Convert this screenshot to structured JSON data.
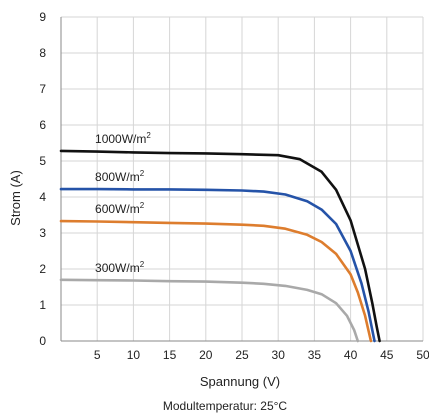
{
  "chart_data": {
    "type": "line",
    "xlabel": "Spannung (V)",
    "ylabel": "Strom (A)",
    "note": "Modultemperatur: 25°C",
    "xlim": [
      0,
      50
    ],
    "ylim": [
      0,
      9
    ],
    "xticks": [
      "5",
      "10",
      "15",
      "20",
      "25",
      "30",
      "35",
      "40",
      "45",
      "50"
    ],
    "yticks": [
      "0",
      "1",
      "2",
      "3",
      "4",
      "5",
      "6",
      "7",
      "8",
      "9"
    ],
    "grid": true,
    "series": [
      {
        "name": "1000W/m2",
        "label": "1000W/m",
        "label_sup": "2",
        "color": "#111111",
        "x": [
          0,
          5,
          10,
          15,
          20,
          25,
          30,
          33,
          36,
          38,
          40,
          42,
          43,
          43.6,
          44
        ],
        "y": [
          5.28,
          5.26,
          5.24,
          5.22,
          5.21,
          5.19,
          5.16,
          5.05,
          4.7,
          4.2,
          3.35,
          2.0,
          1.05,
          0.4,
          0
        ]
      },
      {
        "name": "800W/m2",
        "label": "800W/m",
        "label_sup": "2",
        "color": "#2553a8",
        "x": [
          0,
          5,
          10,
          15,
          20,
          25,
          28,
          31,
          34,
          36,
          38,
          40,
          41.5,
          42.5,
          43.3
        ],
        "y": [
          4.22,
          4.22,
          4.21,
          4.21,
          4.2,
          4.18,
          4.15,
          4.07,
          3.88,
          3.65,
          3.25,
          2.5,
          1.6,
          0.8,
          0
        ]
      },
      {
        "name": "600W/m2",
        "label": "600W/m",
        "label_sup": "2",
        "color": "#dd7d2e",
        "x": [
          0,
          5,
          10,
          15,
          20,
          25,
          28,
          31,
          34,
          36,
          38,
          40,
          41,
          42,
          42.8
        ],
        "y": [
          3.33,
          3.32,
          3.3,
          3.28,
          3.26,
          3.23,
          3.2,
          3.12,
          2.95,
          2.75,
          2.42,
          1.85,
          1.35,
          0.7,
          0
        ]
      },
      {
        "name": "300W/m2",
        "label": "300W/m",
        "label_sup": "2",
        "color": "#a9a9a9",
        "x": [
          0,
          5,
          10,
          15,
          20,
          25,
          28,
          31,
          34,
          36,
          38,
          39.5,
          40.5,
          41
        ],
        "y": [
          1.7,
          1.69,
          1.68,
          1.66,
          1.65,
          1.62,
          1.59,
          1.53,
          1.42,
          1.3,
          1.05,
          0.7,
          0.3,
          0
        ]
      }
    ]
  }
}
